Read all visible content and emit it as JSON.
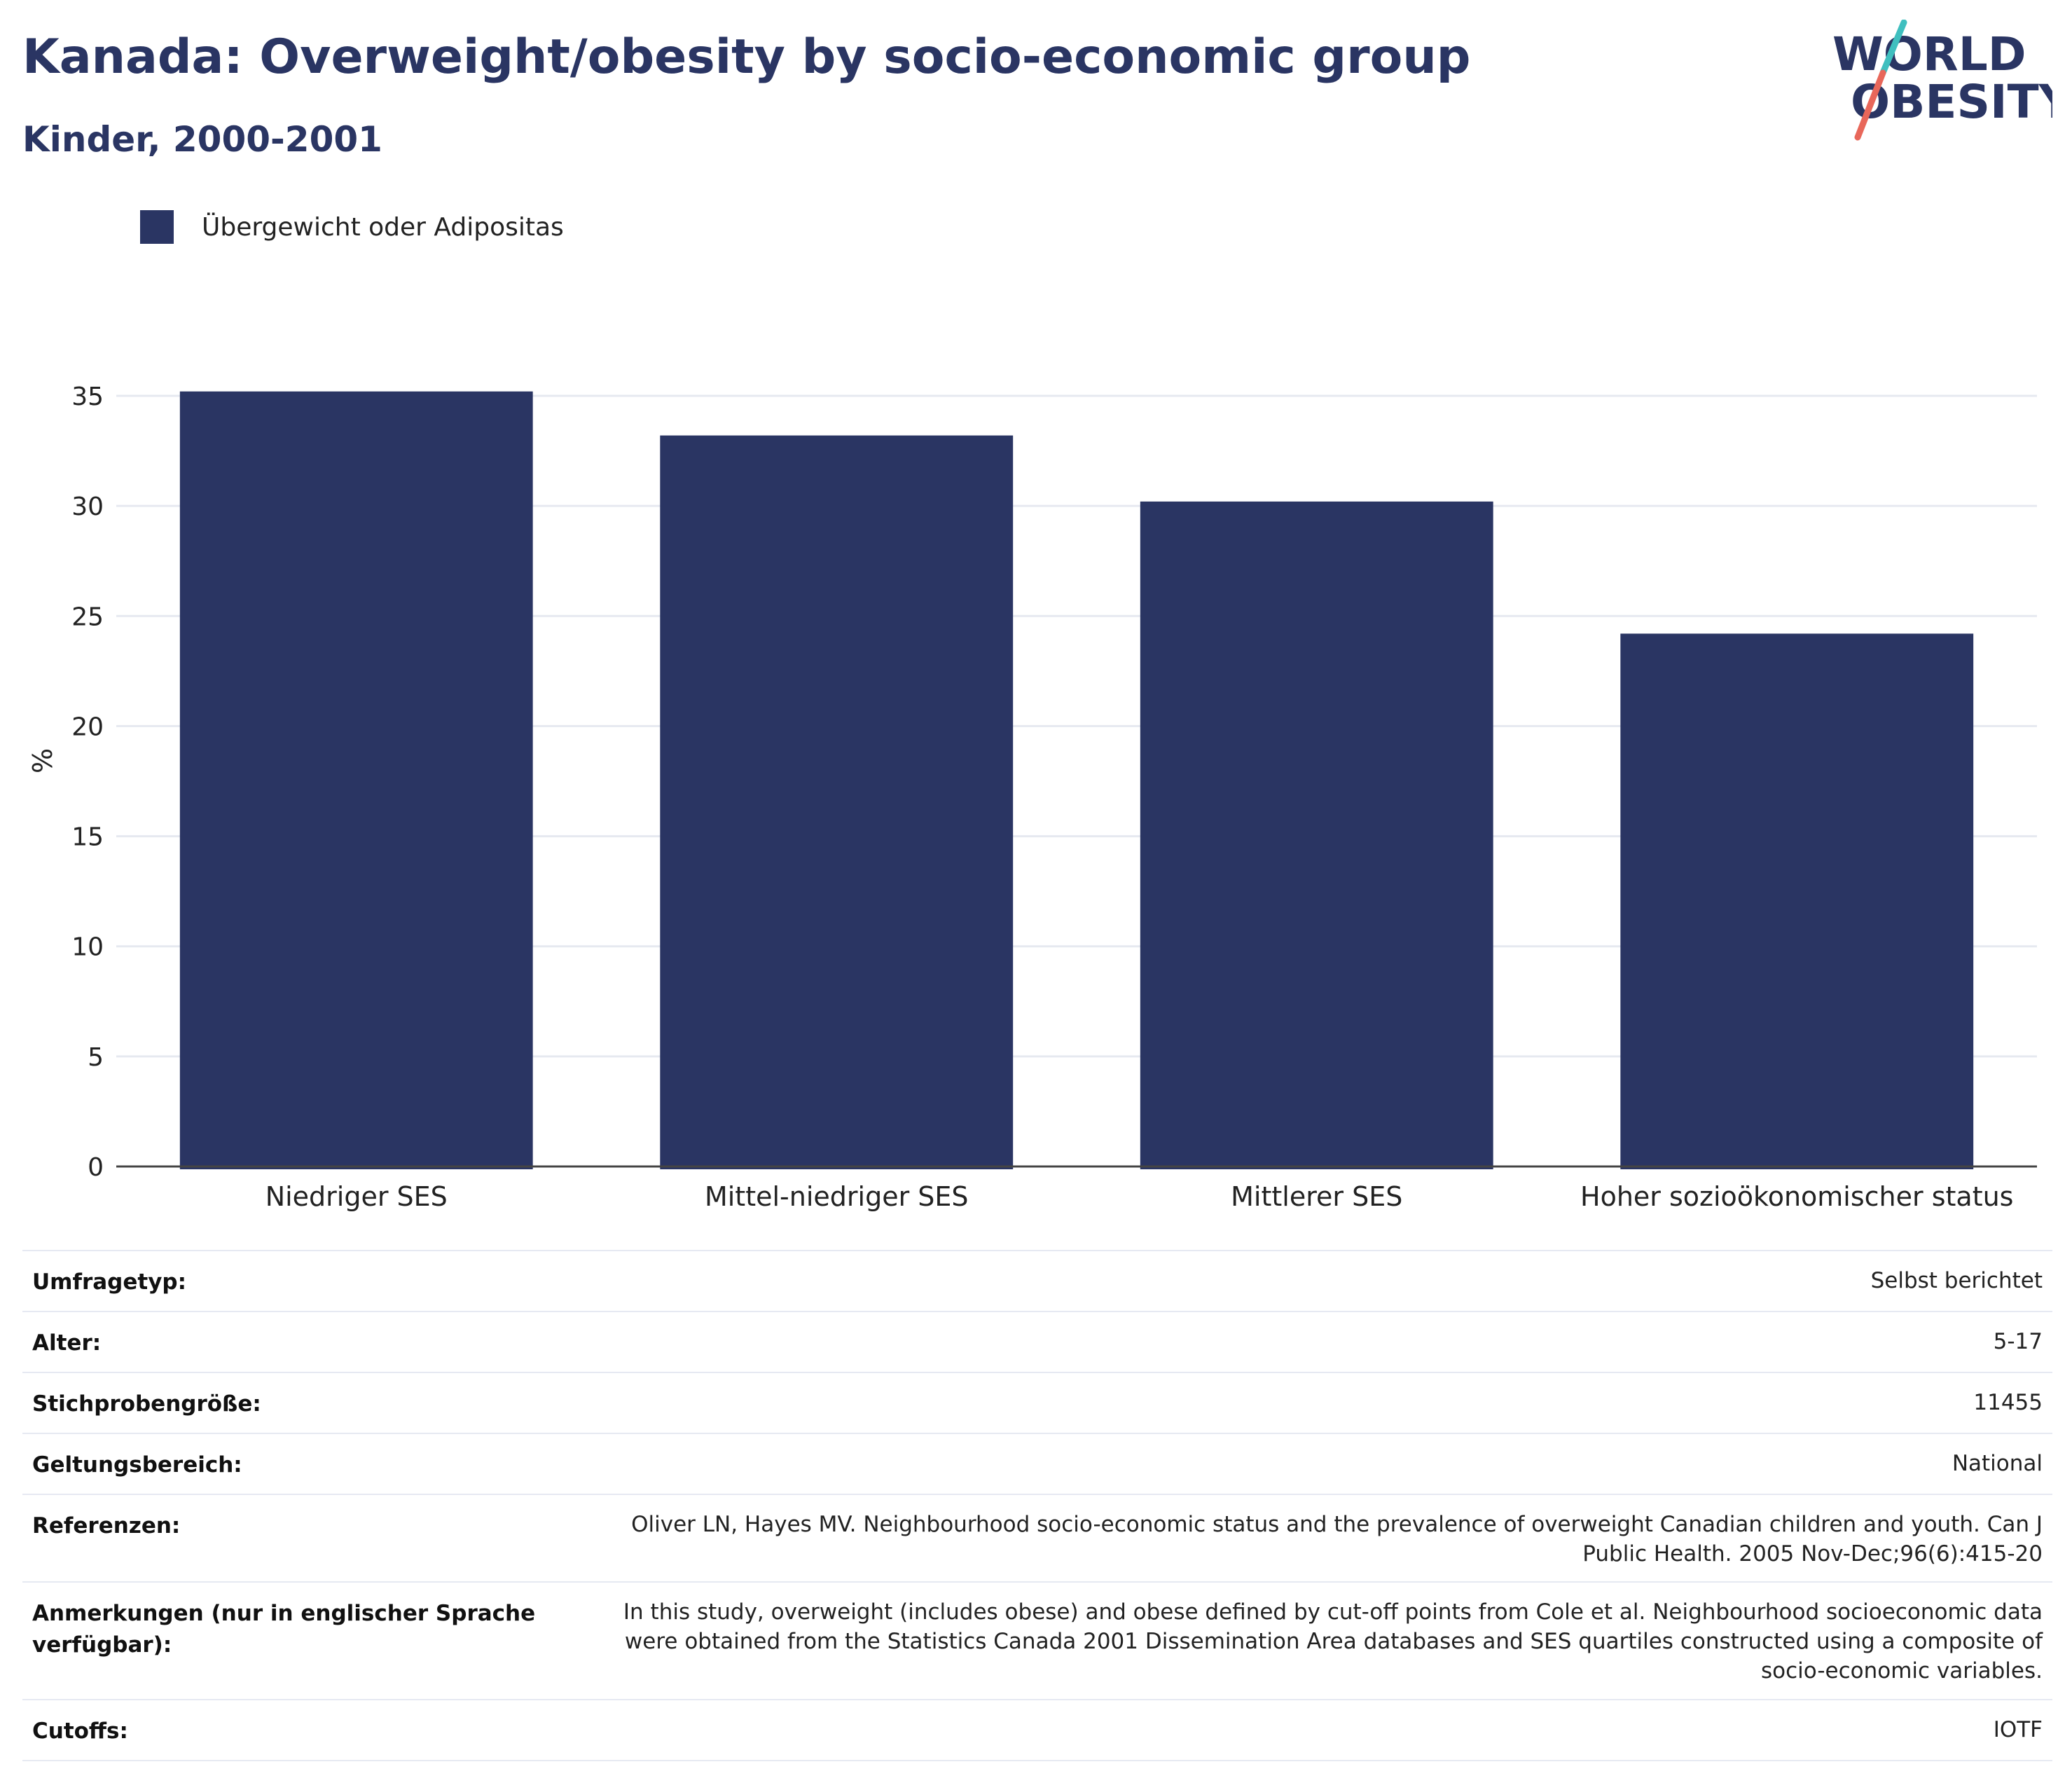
{
  "header": {
    "title": "Kanada: Overweight/obesity by socio-economic group",
    "subtitle": "Kinder, 2000-2001"
  },
  "logo": {
    "line1": "WORLD",
    "line2": "OBESITY",
    "colors": {
      "text": "#2a3563",
      "slash_top": "#3fbfbf",
      "slash_bottom": "#e8675a"
    }
  },
  "legend": {
    "label": "Übergewicht oder Adipositas",
    "color": "#2a3563"
  },
  "chart_data": {
    "type": "bar",
    "categories": [
      "Niedriger SES",
      "Mittel-niedriger SES",
      "Mittlerer SES",
      "Hoher sozioökonomischer status"
    ],
    "series": [
      {
        "name": "Übergewicht oder Adipositas",
        "values": [
          35.2,
          33.2,
          30.2,
          24.2
        ],
        "color": "#2a3563"
      }
    ],
    "ylabel": "%",
    "xlabel": "",
    "ylim": [
      0,
      35
    ],
    "yticks": [
      0,
      5,
      10,
      15,
      20,
      25,
      30,
      35
    ],
    "grid": true,
    "legend_position": "top-left"
  },
  "info": {
    "rows": [
      {
        "label": "Umfragetyp:",
        "value": "Selbst berichtet"
      },
      {
        "label": "Alter:",
        "value": "5-17"
      },
      {
        "label": "Stichprobengröße:",
        "value": "11455"
      },
      {
        "label": "Geltungsbereich:",
        "value": "National"
      },
      {
        "label": "Referenzen:",
        "value": "Oliver LN, Hayes MV. Neighbourhood socio-economic status and the prevalence of overweight Canadian children and youth. Can J Public Health. 2005 Nov-Dec;96(6):415-20"
      },
      {
        "label": "Anmerkungen (nur in englischer Sprache verfügbar):",
        "value": "In this study, overweight (includes obese) and obese defined by cut-off points from Cole et al. Neighbourhood socioeconomic data were obtained from the Statistics Canada 2001 Dissemination Area databases and SES quartiles constructed using a composite of socio-economic variables."
      },
      {
        "label": "Cutoffs:",
        "value": "IOTF"
      }
    ]
  }
}
